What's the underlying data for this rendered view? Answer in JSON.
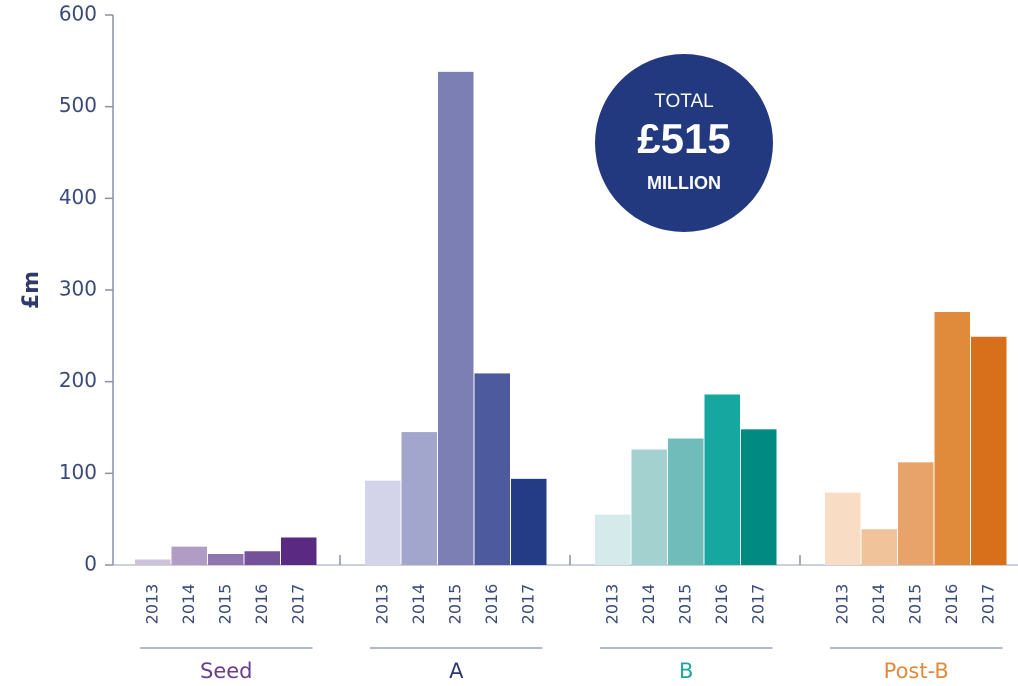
{
  "chart_data": {
    "type": "grouped-bar",
    "ylabel": "£m",
    "ylim": [
      0,
      600
    ],
    "yticks": [
      0,
      100,
      200,
      300,
      400,
      500,
      600
    ],
    "years": [
      "2013",
      "2014",
      "2015",
      "2016",
      "2017"
    ],
    "series": [
      {
        "name": "Seed",
        "label_color": "#6b3d8f",
        "colors": [
          "#cdc2dc",
          "#b09cc5",
          "#8f75ad",
          "#74529a",
          "#5a2a82"
        ],
        "values": [
          6,
          20,
          12,
          15,
          30
        ]
      },
      {
        "name": "A",
        "label_color": "#2e3a6e",
        "colors": [
          "#d3d3ea",
          "#a3a6cc",
          "#7b7fb4",
          "#4e5a9e",
          "#243b85"
        ],
        "values": [
          92,
          145,
          538,
          209,
          94
        ]
      },
      {
        "name": "B",
        "label_color": "#1ba79e",
        "colors": [
          "#d5ebeb",
          "#a3d1d0",
          "#6fbcba",
          "#16a8a0",
          "#008a82"
        ],
        "values": [
          55,
          126,
          138,
          186,
          148
        ]
      },
      {
        "name": "Post-B",
        "label_color": "#e08a3c",
        "colors": [
          "#f8dcc3",
          "#f1c39a",
          "#e7a36a",
          "#e08a3c",
          "#d86f1a"
        ],
        "values": [
          79,
          39,
          112,
          276,
          249
        ]
      }
    ],
    "annotation": {
      "line1": "TOTAL",
      "line2": "£515",
      "line3": "MILLION",
      "color": "#22397f"
    }
  }
}
